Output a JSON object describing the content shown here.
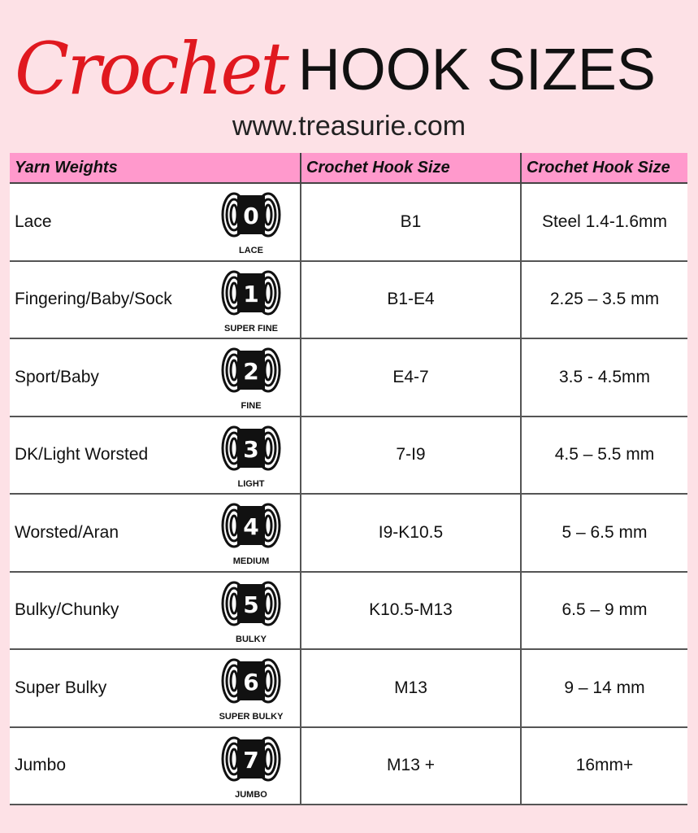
{
  "header": {
    "title_script": "Crochet",
    "title_rest": "HOOK SIZES",
    "url": "www.treasurie.com"
  },
  "colors": {
    "background": "#fde1e6",
    "header_row": "#ff99cc",
    "title_red": "#e0181f"
  },
  "table": {
    "columns": [
      "Yarn Weights",
      "Crochet Hook Size",
      "Crochet Hook Size"
    ],
    "rows": [
      {
        "yarn": "Lace",
        "num": "0",
        "label": "LACE",
        "us": "B1",
        "mm": "Steel 1.4-1.6mm"
      },
      {
        "yarn": "Fingering/Baby/Sock",
        "num": "1",
        "label": "SUPER FINE",
        "us": "B1-E4",
        "mm": "2.25 – 3.5 mm"
      },
      {
        "yarn": "Sport/Baby",
        "num": "2",
        "label": "FINE",
        "us": "E4-7",
        "mm": "3.5 - 4.5mm"
      },
      {
        "yarn": "DK/Light Worsted",
        "num": "3",
        "label": "LIGHT",
        "us": "7-I9",
        "mm": "4.5 – 5.5 mm"
      },
      {
        "yarn": "Worsted/Aran",
        "num": "4",
        "label": "MEDIUM",
        "us": "I9-K10.5",
        "mm": "5 – 6.5 mm"
      },
      {
        "yarn": "Bulky/Chunky",
        "num": "5",
        "label": "BULKY",
        "us": "K10.5-M13",
        "mm": "6.5 – 9 mm"
      },
      {
        "yarn": "Super Bulky",
        "num": "6",
        "label": "SUPER BULKY",
        "us": "M13",
        "mm": "9 – 14 mm"
      },
      {
        "yarn": "Jumbo",
        "num": "7",
        "label": "JUMBO",
        "us": "M13 +",
        "mm": "16mm+"
      }
    ]
  }
}
